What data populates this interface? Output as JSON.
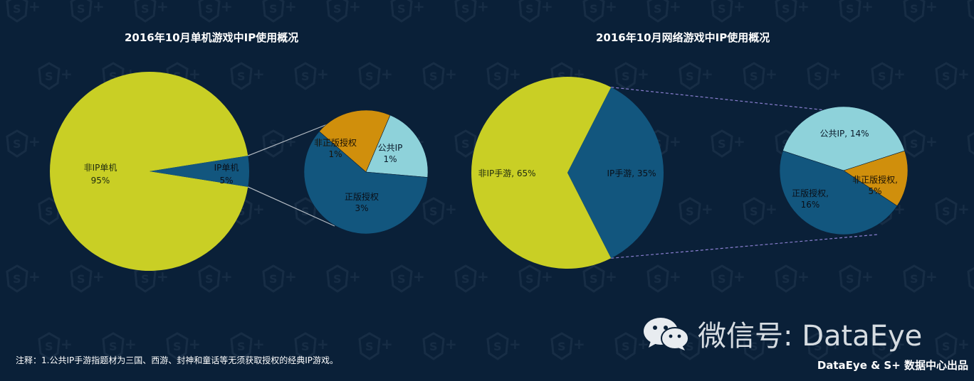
{
  "chart_data": [
    {
      "type": "pie",
      "title": "2016年10月单机游戏中IP使用概况",
      "slices": [
        {
          "label": "非IP单机",
          "value": 95,
          "display": "95%",
          "color": "#c9cf25"
        },
        {
          "label": "IP单机",
          "value": 5,
          "display": "5%",
          "color": "#12567e"
        }
      ],
      "breakdown_of": "IP单机",
      "breakdown": [
        {
          "label": "公共IP",
          "value": 1,
          "display": "1%",
          "color": "#8ed2da"
        },
        {
          "label": "正版授权",
          "value": 3,
          "display": "3%",
          "color": "#12567e"
        },
        {
          "label": "非正版授权",
          "value": 1,
          "display": "1%",
          "color": "#d08f0c"
        }
      ]
    },
    {
      "type": "pie",
      "title": "2016年10月网络游戏中IP使用概况",
      "slices": [
        {
          "label": "非IP手游",
          "value": 65,
          "display": "65%",
          "color": "#c9cf25"
        },
        {
          "label": "IP手游",
          "value": 35,
          "display": "35%",
          "color": "#12567e"
        }
      ],
      "breakdown_of": "IP手游",
      "breakdown": [
        {
          "label": "公共IP",
          "value": 14,
          "display": "14%",
          "color": "#8ed2da"
        },
        {
          "label": "非正版授权",
          "value": 5,
          "display": "5%",
          "color": "#d08f0c"
        },
        {
          "label": "正版授权",
          "value": 16,
          "display": "16%",
          "color": "#12567e"
        }
      ]
    }
  ],
  "footer": {
    "note": "注释：1.公共IP手游指题材为三国、西游、封神和童话等无须获取授权的经典IP游戏。",
    "credit": "DataEye & S+ 数据中心出品",
    "wechat": "微信号: DataEye"
  },
  "colors": {
    "background": "#0a2038",
    "connector_left": "#b5bcc4",
    "connector_right": "#8a7fd0"
  },
  "icons": {
    "watermark": "s-plus-shield-icon",
    "wechat": "wechat-icon"
  }
}
